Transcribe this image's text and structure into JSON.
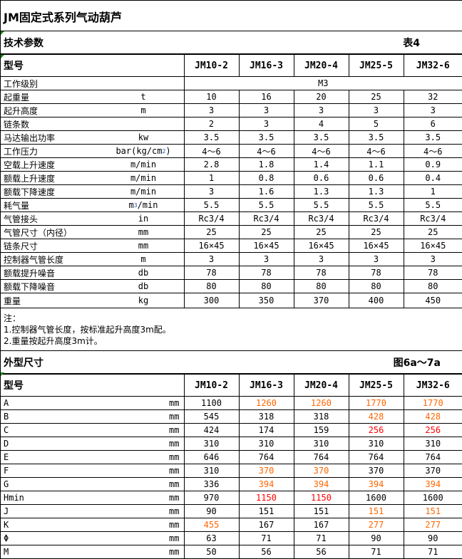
{
  "title": "JM固定式系列气动葫芦",
  "spec_section": {
    "title": "技术参数",
    "table_ref": "表4"
  },
  "models_header": "型号",
  "models": [
    "JM10-2",
    "JM16-3",
    "JM20-4",
    "JM25-5",
    "JM32-6"
  ],
  "work_class": {
    "label": "工作级别",
    "value": "M3"
  },
  "spec_rows": [
    {
      "label": "起重量",
      "unit": "t",
      "values": [
        "10",
        "16",
        "20",
        "25",
        "32"
      ]
    },
    {
      "label": "起升高度",
      "unit": "m",
      "values": [
        "3",
        "3",
        "3",
        "3",
        "3"
      ]
    },
    {
      "label": "链条数",
      "unit": "",
      "values": [
        "2",
        "3",
        "4",
        "5",
        "6"
      ]
    },
    {
      "label": "马达输出功率",
      "unit": "kw",
      "values": [
        "3.5",
        "3.5",
        "3.5",
        "3.5",
        "3.5"
      ]
    },
    {
      "label": "工作压力",
      "unit": "bar(kg/cm",
      "unit_sup": "2",
      "unit_tail": ")",
      "values": [
        "4～6",
        "4～6",
        "4～6",
        "4～6",
        "4～6"
      ]
    },
    {
      "label": "空载上升速度",
      "unit": "m/min",
      "values": [
        "2.8",
        "1.8",
        "1.4",
        "1.1",
        "0.9"
      ]
    },
    {
      "label": "额载上升速度",
      "unit": "m/min",
      "values": [
        "1",
        "0.8",
        "0.6",
        "0.6",
        "0.4"
      ]
    },
    {
      "label": "额载下降速度",
      "unit": "m/min",
      "values": [
        "3",
        "1.6",
        "1.3",
        "1.3",
        "1"
      ]
    },
    {
      "label": "耗气量",
      "unit": "m",
      "unit_sup": "3",
      "unit_tail": "/min",
      "values": [
        "5.5",
        "5.5",
        "5.5",
        "5.5",
        "5.5"
      ]
    },
    {
      "label": "气管接头",
      "unit": "in",
      "values": [
        "Rc3/4",
        "Rc3/4",
        "Rc3/4",
        "Rc3/4",
        "Rc3/4"
      ]
    },
    {
      "label": "气管尺寸（内径）",
      "unit": "mm",
      "values": [
        "25",
        "25",
        "25",
        "25",
        "25"
      ]
    },
    {
      "label": "链条尺寸",
      "unit": "mm",
      "values": [
        "16×45",
        "16×45",
        "16×45",
        "16×45",
        "16×45"
      ]
    },
    {
      "label": "控制器气管长度",
      "unit": "m",
      "values": [
        "3",
        "3",
        "3",
        "3",
        "3"
      ]
    },
    {
      "label": "额载提升噪音",
      "unit": "db",
      "values": [
        "78",
        "78",
        "78",
        "78",
        "78"
      ]
    },
    {
      "label": "额载下降噪音",
      "unit": "db",
      "values": [
        "80",
        "80",
        "80",
        "80",
        "80"
      ]
    },
    {
      "label": "重量",
      "unit": "kg",
      "values": [
        "300",
        "350",
        "370",
        "400",
        "450"
      ]
    }
  ],
  "notes": [
    "注：",
    "1.控制器气管长度，按标准起升高度3m配。",
    "2.重量按起升高度3m计。"
  ],
  "dim_section": {
    "title": "外型尺寸",
    "figure_ref": "图6a～7a"
  },
  "colors": {
    "orange": "#ff6600",
    "red": "#ff0000"
  },
  "dim_rows": [
    {
      "label": "A",
      "unit": "mm",
      "values": [
        "1100",
        "1260",
        "1260",
        "1770",
        "1770"
      ],
      "colors": [
        "",
        "orange",
        "orange",
        "orange",
        "orange"
      ]
    },
    {
      "label": "B",
      "unit": "mm",
      "values": [
        "545",
        "318",
        "318",
        "428",
        "428"
      ],
      "colors": [
        "",
        "",
        "",
        "orange",
        "orange"
      ]
    },
    {
      "label": "C",
      "unit": "mm",
      "values": [
        "424",
        "174",
        "159",
        "256",
        "256"
      ],
      "colors": [
        "",
        "",
        "",
        "red",
        "red"
      ]
    },
    {
      "label": "D",
      "unit": "mm",
      "values": [
        "310",
        "310",
        "310",
        "310",
        "310"
      ],
      "colors": [
        "",
        "",
        "",
        "",
        ""
      ]
    },
    {
      "label": "E",
      "unit": "mm",
      "values": [
        "646",
        "764",
        "764",
        "764",
        "764"
      ],
      "colors": [
        "",
        "",
        "",
        "",
        ""
      ]
    },
    {
      "label": "F",
      "unit": "mm",
      "values": [
        "310",
        "370",
        "370",
        "370",
        "370"
      ],
      "colors": [
        "",
        "orange",
        "orange",
        "",
        ""
      ]
    },
    {
      "label": "G",
      "unit": "mm",
      "values": [
        "336",
        "394",
        "394",
        "394",
        "394"
      ],
      "colors": [
        "",
        "orange",
        "orange",
        "orange",
        "orange"
      ]
    },
    {
      "label": "Hmin",
      "unit": "mm",
      "values": [
        "970",
        "1150",
        "1150",
        "1600",
        "1600"
      ],
      "colors": [
        "",
        "red",
        "red",
        "",
        ""
      ]
    },
    {
      "label": "J",
      "unit": "mm",
      "values": [
        "90",
        "151",
        "151",
        "151",
        "151"
      ],
      "colors": [
        "",
        "",
        "",
        "orange",
        "orange"
      ]
    },
    {
      "label": "K",
      "unit": "mm",
      "values": [
        "455",
        "167",
        "167",
        "277",
        "277"
      ],
      "colors": [
        "orange",
        "",
        "",
        "orange",
        "orange"
      ]
    },
    {
      "label": "Φ",
      "unit": "mm",
      "values": [
        "63",
        "71",
        "71",
        "90",
        "90"
      ],
      "colors": [
        "",
        "",
        "",
        "",
        ""
      ]
    },
    {
      "label": "M",
      "unit": "mm",
      "values": [
        "50",
        "56",
        "56",
        "71",
        "71"
      ],
      "colors": [
        "",
        "",
        "",
        "",
        ""
      ]
    }
  ]
}
